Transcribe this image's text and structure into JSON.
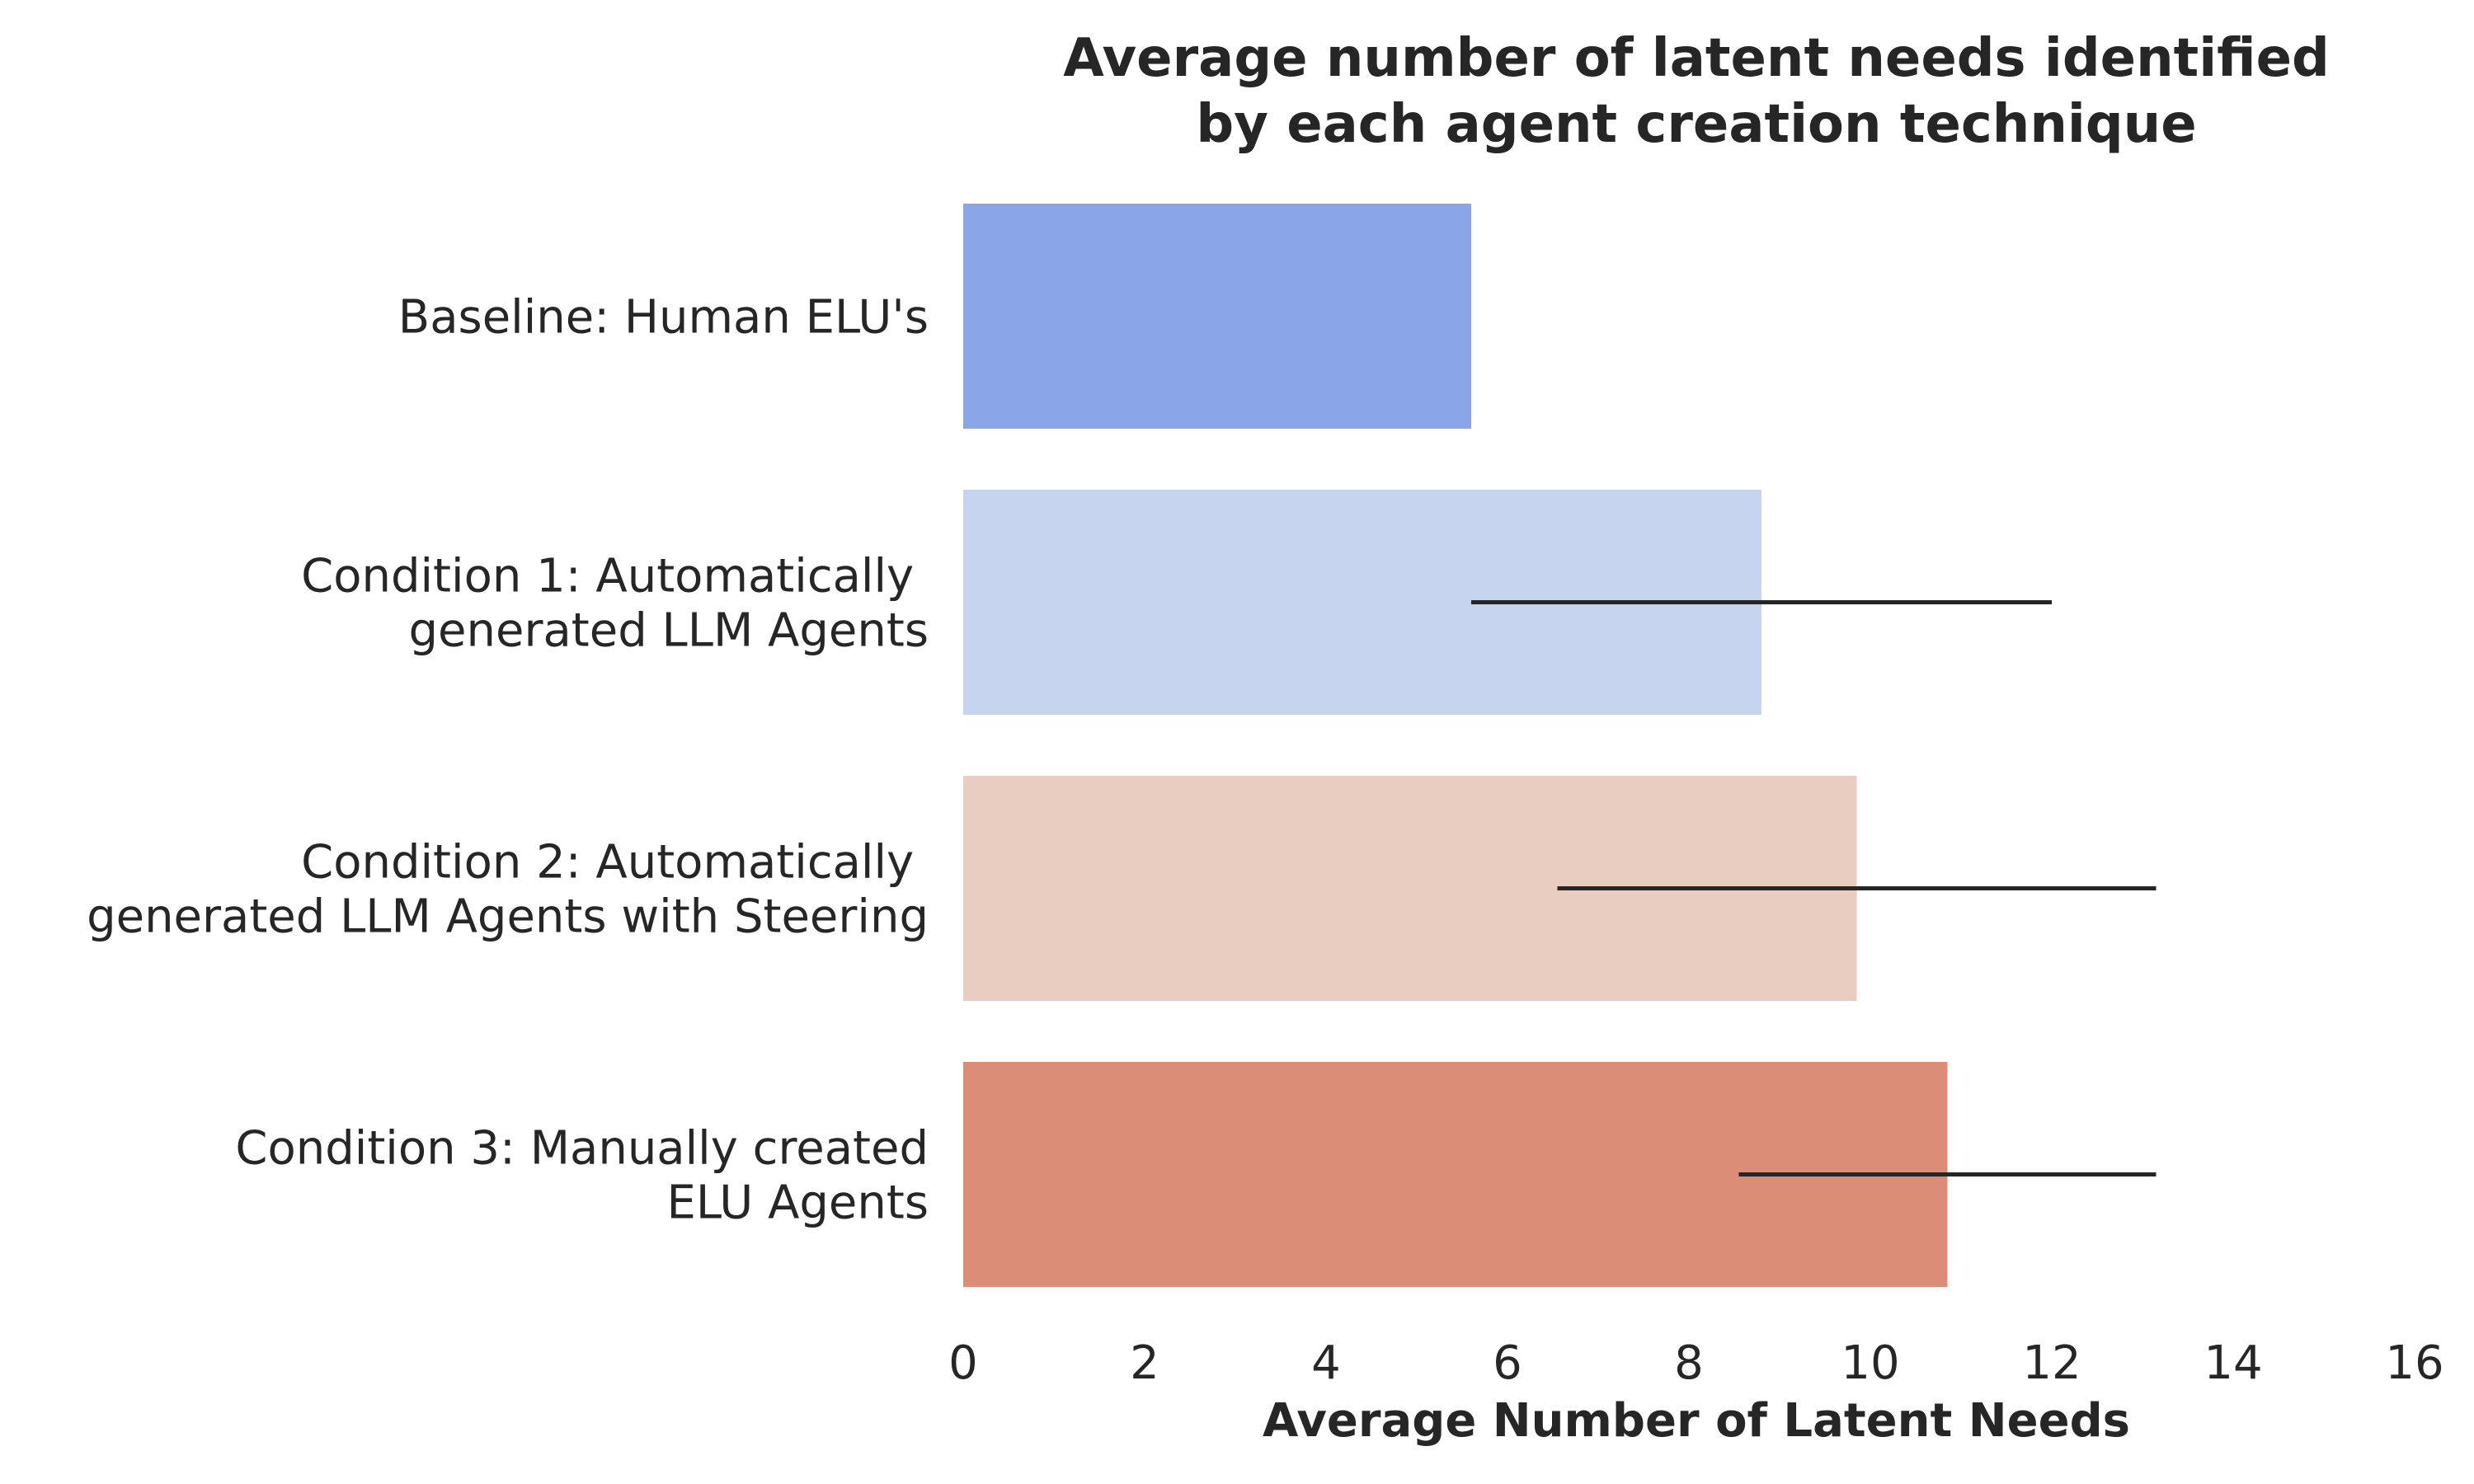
{
  "chart_data": {
    "type": "bar",
    "orientation": "horizontal",
    "title": [
      "Average number of latent needs identified",
      "by each agent creation technique"
    ],
    "xlabel": "Average Number of Latent Needs",
    "ylabel": "",
    "xlim": [
      0,
      16
    ],
    "xticks": [
      "0",
      "2",
      "4",
      "6",
      "8",
      "10",
      "12",
      "14",
      "16"
    ],
    "grid": false,
    "categories": [
      [
        "Baseline: Human ELU's"
      ],
      [
        "Condition 1: Automatically ",
        "generated LLM Agents"
      ],
      [
        "Condition 2: Automatically ",
        "generated LLM Agents with Steering"
      ],
      [
        "Condition 3: Manually created",
        "ELU Agents"
      ]
    ],
    "values": [
      5.6,
      8.8,
      9.85,
      10.85
    ],
    "error_bars": [
      null,
      [
        5.6,
        12.0
      ],
      [
        6.55,
        13.15
      ],
      [
        8.55,
        13.15
      ]
    ],
    "colors": [
      "#8aa6e8",
      "#c6d4ef",
      "#e9cdc0",
      "#dc8d77"
    ]
  }
}
